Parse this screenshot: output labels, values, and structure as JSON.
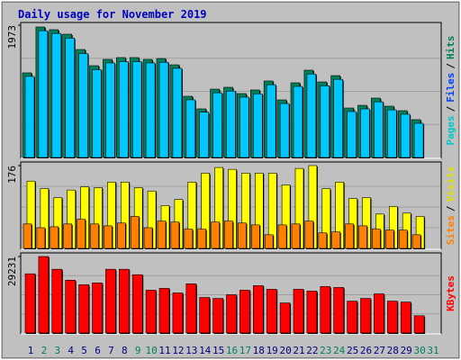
{
  "chart_data": [
    {
      "type": "bar",
      "title": "Daily usage for November 2019",
      "series": [
        {
          "name": "Hits",
          "color": "#00805c",
          "values": [
            1262,
            1946,
            1906,
            1839,
            1610,
            1369,
            1463,
            1490,
            1490,
            1463,
            1476,
            1382,
            913,
            725,
            1020,
            1047,
            953,
            1007,
            1141,
            859,
            1114,
            1302,
            1127,
            1221,
            738,
            778,
            886,
            765,
            698,
            564,
            null
          ]
        },
        {
          "name": "Files",
          "color": "#00c8ff",
          "values": [
            1210,
            1890,
            1850,
            1780,
            1550,
            1310,
            1410,
            1430,
            1430,
            1410,
            1420,
            1330,
            860,
            675,
            965,
            990,
            900,
            950,
            1085,
            805,
            1060,
            1245,
            1070,
            1165,
            685,
            725,
            830,
            710,
            645,
            510,
            null
          ]
        }
      ],
      "axis_label": [
        {
          "text": "Pages",
          "color": "#00c8c8"
        },
        {
          "text": "/",
          "color": "#000000"
        },
        {
          "text": "Files",
          "color": "#0040ff"
        },
        {
          "text": "/",
          "color": "#000000"
        },
        {
          "text": "Hits",
          "color": "#00805c"
        }
      ],
      "ylim": [
        0,
        1973
      ],
      "yticks": [
        1973
      ]
    },
    {
      "type": "bar",
      "series": [
        {
          "name": "Visits",
          "color": "#ffff00",
          "values": [
            143,
            127,
            108,
            124,
            131,
            129,
            141,
            141,
            129,
            122,
            91,
            104,
            141,
            160,
            172,
            168,
            160,
            160,
            160,
            135,
            170,
            176,
            127,
            141,
            106,
            108,
            73,
            89,
            75,
            68,
            null
          ]
        },
        {
          "name": "Sites",
          "color": "#ff8000",
          "values": [
            52,
            44,
            46,
            52,
            62,
            52,
            48,
            54,
            68,
            44,
            58,
            56,
            41,
            41,
            56,
            58,
            54,
            50,
            29,
            50,
            52,
            58,
            33,
            35,
            52,
            48,
            41,
            39,
            39,
            29,
            null
          ]
        }
      ],
      "axis_label": [
        {
          "text": "Sites",
          "color": "#ff8000"
        },
        {
          "text": "/",
          "color": "#000000"
        },
        {
          "text": "Visits",
          "color": "#e0e000"
        }
      ],
      "ylim": [
        0,
        176
      ],
      "yticks": [
        176
      ]
    },
    {
      "type": "bar",
      "series": [
        {
          "name": "KBytes",
          "color": "#ff0000",
          "values": [
            22620,
            29231,
            24360,
            20180,
            18440,
            19140,
            24360,
            24360,
            22270,
            16360,
            17050,
            15310,
            18790,
            13570,
            13220,
            14620,
            16360,
            18100,
            16700,
            11480,
            16700,
            16010,
            17750,
            17400,
            12180,
            13220,
            14960,
            12180,
            11830,
            6610,
            null
          ]
        }
      ],
      "axis_label": [
        {
          "text": "KBytes",
          "color": "#ff0000"
        }
      ],
      "ylim": [
        0,
        29231
      ],
      "yticks": [
        29231
      ],
      "categories": [
        "1",
        "2",
        "3",
        "4",
        "5",
        "6",
        "7",
        "8",
        "9",
        "10",
        "11",
        "12",
        "13",
        "14",
        "15",
        "16",
        "17",
        "18",
        "19",
        "20",
        "21",
        "22",
        "23",
        "24",
        "25",
        "26",
        "27",
        "28",
        "29",
        "30",
        "31"
      ],
      "category_colors": [
        "#000080",
        "#00805c",
        "#00805c",
        "#000080",
        "#000080",
        "#000080",
        "#000080",
        "#000080",
        "#00805c",
        "#00805c",
        "#000080",
        "#000080",
        "#000080",
        "#000080",
        "#000080",
        "#00805c",
        "#00805c",
        "#000080",
        "#000080",
        "#000080",
        "#000080",
        "#000080",
        "#00805c",
        "#00805c",
        "#000080",
        "#000080",
        "#000080",
        "#000080",
        "#000080",
        "#00805c",
        "#00805c"
      ]
    }
  ]
}
